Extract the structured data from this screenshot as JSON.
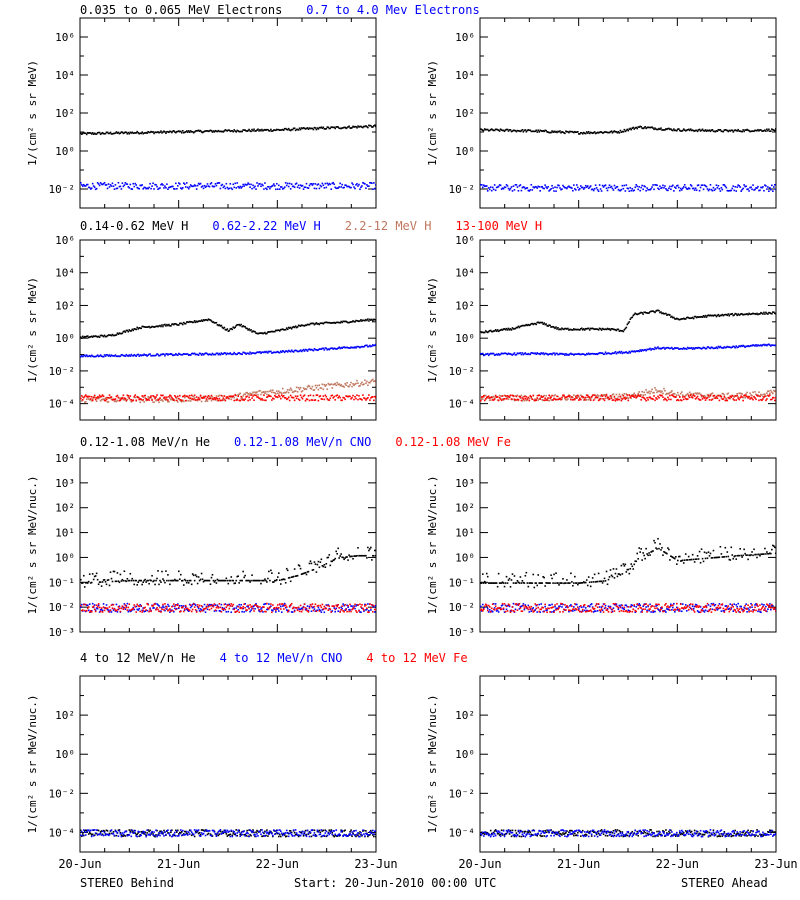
{
  "colors": {
    "black": "#000000",
    "blue": "#0000ff",
    "brown": "#c07860",
    "red": "#ff0000"
  },
  "footer": {
    "left": "STEREO Behind",
    "center": "Start: 20-Jun-2010 00:00 UTC",
    "right": "STEREO Ahead"
  },
  "chart_data": [
    {
      "type": "scatter",
      "row": 1,
      "column": "left",
      "spacecraft": "STEREO Behind",
      "ylabel": "1/(cm² s sr MeV)",
      "yscale": "log",
      "ylim_exp": [
        -3,
        7
      ],
      "y_ticks": [
        "10⁻²",
        "10⁰",
        "10²",
        "10⁴",
        "10⁶"
      ],
      "x_ticks": [
        "20-Jun",
        "21-Jun",
        "22-Jun",
        "23-Jun"
      ],
      "legend": [
        {
          "text": "0.035 to 0.065 MeV Electrons",
          "color": "#000000"
        },
        {
          "text": "0.7 to 4.0 Mev Electrons",
          "color": "#0000ff"
        }
      ],
      "series": [
        {
          "name": "0.035 to 0.065 MeV Electrons",
          "color": "#000000",
          "style": "line",
          "x": [
            0,
            0.5,
            1.0,
            1.5,
            2.0,
            2.5,
            3.0
          ],
          "log10_y": [
            0.95,
            1.0,
            1.05,
            1.1,
            1.15,
            1.25,
            1.35
          ]
        },
        {
          "name": "0.7 to 4.0 Mev Electrons",
          "color": "#0000ff",
          "style": "band",
          "x": [
            0,
            1.0,
            2.0,
            3.0
          ],
          "log10_y": [
            -1.8,
            -1.8,
            -1.8,
            -1.8
          ]
        }
      ]
    },
    {
      "type": "scatter",
      "row": 1,
      "column": "right",
      "spacecraft": "STEREO Ahead",
      "ylabel": "1/(cm² s sr MeV)",
      "yscale": "log",
      "ylim_exp": [
        -3,
        7
      ],
      "y_ticks": [
        "10⁻²",
        "10⁰",
        "10²",
        "10⁴",
        "10⁶"
      ],
      "x_ticks": [
        "20-Jun",
        "21-Jun",
        "22-Jun",
        "23-Jun"
      ],
      "legend": [],
      "series": [
        {
          "name": "0.035 to 0.065 MeV Electrons",
          "color": "#000000",
          "style": "line",
          "x": [
            0,
            0.5,
            1.0,
            1.4,
            1.6,
            2.0,
            2.5,
            3.0
          ],
          "log10_y": [
            1.15,
            1.1,
            1.0,
            1.05,
            1.3,
            1.15,
            1.1,
            1.15
          ]
        },
        {
          "name": "0.7 to 4.0 Mev Electrons",
          "color": "#0000ff",
          "style": "band",
          "x": [
            0,
            1.0,
            2.0,
            3.0
          ],
          "log10_y": [
            -1.9,
            -1.9,
            -1.9,
            -1.9
          ]
        }
      ]
    },
    {
      "type": "scatter",
      "row": 2,
      "column": "left",
      "spacecraft": "STEREO Behind",
      "ylabel": "1/(cm² s sr MeV)",
      "yscale": "log",
      "ylim_exp": [
        -5,
        6
      ],
      "y_ticks": [
        "10⁻⁴",
        "10⁻²",
        "10⁰",
        "10²",
        "10⁴",
        "10⁶"
      ],
      "x_ticks": [
        "20-Jun",
        "21-Jun",
        "22-Jun",
        "23-Jun"
      ],
      "legend": [
        {
          "text": "0.14-0.62 MeV H",
          "color": "#000000"
        },
        {
          "text": "0.62-2.22 MeV H",
          "color": "#0000ff"
        },
        {
          "text": "2.2-12 MeV H",
          "color": "#c07860"
        },
        {
          "text": "13-100 MeV H",
          "color": "#ff0000"
        }
      ],
      "series": [
        {
          "name": "0.14-0.62 MeV H",
          "color": "#000000",
          "style": "line",
          "x": [
            0,
            0.3,
            0.6,
            0.8,
            1.0,
            1.3,
            1.5,
            1.6,
            1.8,
            2.0,
            2.3,
            2.6,
            3.0
          ],
          "log10_y": [
            0.1,
            0.2,
            0.7,
            0.8,
            0.9,
            1.2,
            0.5,
            0.9,
            0.3,
            0.5,
            0.9,
            1.0,
            1.2
          ]
        },
        {
          "name": "0.62-2.22 MeV H",
          "color": "#0000ff",
          "style": "line",
          "x": [
            0,
            0.5,
            1.0,
            1.5,
            2.0,
            2.5,
            3.0
          ],
          "log10_y": [
            -1.05,
            -1.0,
            -0.95,
            -0.9,
            -0.8,
            -0.6,
            -0.4
          ]
        },
        {
          "name": "2.2-12 MeV H",
          "color": "#c07860",
          "style": "band",
          "x": [
            0,
            1.0,
            1.5,
            1.8,
            2.0,
            2.5,
            3.0
          ],
          "log10_y": [
            -3.7,
            -3.7,
            -3.6,
            -3.3,
            -3.2,
            -2.9,
            -2.6
          ]
        },
        {
          "name": "13-100 MeV H",
          "color": "#ff0000",
          "style": "band",
          "x": [
            0,
            1.0,
            2.0,
            3.0
          ],
          "log10_y": [
            -3.6,
            -3.6,
            -3.6,
            -3.6
          ]
        }
      ]
    },
    {
      "type": "scatter",
      "row": 2,
      "column": "right",
      "spacecraft": "STEREO Ahead",
      "ylabel": "1/(cm² s sr MeV)",
      "yscale": "log",
      "ylim_exp": [
        -5,
        6
      ],
      "y_ticks": [
        "10⁻⁴",
        "10⁻²",
        "10⁰",
        "10²",
        "10⁴",
        "10⁶"
      ],
      "x_ticks": [
        "20-Jun",
        "21-Jun",
        "22-Jun",
        "23-Jun"
      ],
      "legend": [],
      "series": [
        {
          "name": "0.14-0.62 MeV H",
          "color": "#000000",
          "style": "line",
          "x": [
            0,
            0.3,
            0.6,
            0.8,
            1.0,
            1.3,
            1.45,
            1.55,
            1.8,
            2.0,
            2.3,
            2.6,
            3.0
          ],
          "log10_y": [
            0.4,
            0.6,
            1.0,
            0.6,
            0.6,
            0.6,
            0.5,
            1.5,
            1.7,
            1.2,
            1.4,
            1.5,
            1.6
          ]
        },
        {
          "name": "0.62-2.22 MeV H",
          "color": "#0000ff",
          "style": "line",
          "x": [
            0,
            0.5,
            1.0,
            1.5,
            1.8,
            2.0,
            2.5,
            3.0
          ],
          "log10_y": [
            -0.95,
            -0.9,
            -0.95,
            -0.8,
            -0.55,
            -0.6,
            -0.5,
            -0.35
          ]
        },
        {
          "name": "2.2-12 MeV H",
          "color": "#c07860",
          "style": "band",
          "x": [
            0,
            1.0,
            1.5,
            1.8,
            2.0,
            2.5,
            3.0
          ],
          "log10_y": [
            -3.6,
            -3.6,
            -3.5,
            -3.1,
            -3.4,
            -3.5,
            -3.3
          ]
        },
        {
          "name": "13-100 MeV H",
          "color": "#ff0000",
          "style": "band",
          "x": [
            0,
            1.0,
            2.0,
            3.0
          ],
          "log10_y": [
            -3.6,
            -3.6,
            -3.6,
            -3.6
          ]
        }
      ]
    },
    {
      "type": "scatter",
      "row": 3,
      "column": "left",
      "spacecraft": "STEREO Behind",
      "ylabel": "1/(cm² s sr MeV/nuc.)",
      "yscale": "log",
      "ylim_exp": [
        -3,
        4
      ],
      "y_ticks": [
        "10⁻³",
        "10⁻²",
        "10⁻¹",
        "10⁰",
        "10¹",
        "10²",
        "10³",
        "10⁴"
      ],
      "x_ticks": [
        "20-Jun",
        "21-Jun",
        "22-Jun",
        "23-Jun"
      ],
      "legend": [
        {
          "text": "0.12-1.08 MeV/n He",
          "color": "#000000"
        },
        {
          "text": "0.12-1.08 MeV/n CNO",
          "color": "#0000ff"
        },
        {
          "text": "0.12-1.08 MeV Fe",
          "color": "#ff0000"
        }
      ],
      "series": [
        {
          "name": "0.12-1.08 MeV/n He",
          "color": "#000000",
          "style": "scatter",
          "x": [
            0,
            0.5,
            1.0,
            1.5,
            2.0,
            2.2,
            2.4,
            2.6,
            2.8,
            3.0
          ],
          "log10_y": [
            -1.0,
            -0.9,
            -0.9,
            -0.9,
            -0.9,
            -0.7,
            -0.4,
            0.0,
            0.1,
            0.1
          ]
        },
        {
          "name": "0.12-1.08 MeV/n CNO",
          "color": "#0000ff",
          "style": "band",
          "x": [
            0,
            1.0,
            2.0,
            3.0
          ],
          "log10_y": [
            -2.0,
            -2.0,
            -2.0,
            -2.0
          ]
        },
        {
          "name": "0.12-1.08 MeV Fe",
          "color": "#ff0000",
          "style": "band",
          "x": [
            0,
            1.0,
            2.0,
            3.0
          ],
          "log10_y": [
            -2.0,
            -2.0,
            -2.0,
            -2.0
          ]
        }
      ]
    },
    {
      "type": "scatter",
      "row": 3,
      "column": "right",
      "spacecraft": "STEREO Ahead",
      "ylabel": "1/(cm² s sr MeV/nuc.)",
      "yscale": "log",
      "ylim_exp": [
        -3,
        4
      ],
      "y_ticks": [
        "10⁻³",
        "10⁻²",
        "10⁻¹",
        "10⁰",
        "10¹",
        "10²",
        "10³",
        "10⁴"
      ],
      "x_ticks": [
        "20-Jun",
        "21-Jun",
        "22-Jun",
        "23-Jun"
      ],
      "legend": [],
      "series": [
        {
          "name": "0.12-1.08 MeV/n He",
          "color": "#000000",
          "style": "scatter",
          "x": [
            0,
            0.5,
            1.0,
            1.3,
            1.5,
            1.6,
            1.8,
            2.0,
            2.3,
            2.6,
            3.0
          ],
          "log10_y": [
            -1.0,
            -1.0,
            -1.0,
            -0.9,
            -0.5,
            0.0,
            0.4,
            -0.1,
            0.0,
            0.1,
            0.2
          ]
        },
        {
          "name": "0.12-1.08 MeV/n CNO",
          "color": "#0000ff",
          "style": "band",
          "x": [
            0,
            1.0,
            2.0,
            3.0
          ],
          "log10_y": [
            -2.0,
            -2.0,
            -2.0,
            -2.0
          ]
        },
        {
          "name": "0.12-1.08 MeV Fe",
          "color": "#ff0000",
          "style": "band",
          "x": [
            0,
            1.0,
            2.0,
            3.0
          ],
          "log10_y": [
            -2.0,
            -2.0,
            -2.0,
            -2.0
          ]
        }
      ]
    },
    {
      "type": "scatter",
      "row": 4,
      "column": "left",
      "spacecraft": "STEREO Behind",
      "ylabel": "1/(cm² s sr MeV/nuc.)",
      "yscale": "log",
      "ylim_exp": [
        -5,
        4
      ],
      "y_ticks": [
        "10⁻⁴",
        "10⁻²",
        "10⁰",
        "10²"
      ],
      "x_ticks": [
        "20-Jun",
        "21-Jun",
        "22-Jun",
        "23-Jun"
      ],
      "legend": [
        {
          "text": "4 to 12 MeV/n He",
          "color": "#000000"
        },
        {
          "text": "4 to 12 MeV/n CNO",
          "color": "#0000ff"
        },
        {
          "text": "4 to 12 MeV Fe",
          "color": "#ff0000"
        }
      ],
      "series": [
        {
          "name": "4 to 12 MeV/n He",
          "color": "#000000",
          "style": "band",
          "x": [
            0,
            1.0,
            2.0,
            3.0
          ],
          "log10_y": [
            -4.0,
            -4.0,
            -4.0,
            -4.0
          ]
        },
        {
          "name": "4 to 12 MeV/n CNO",
          "color": "#0000ff",
          "style": "band",
          "x": [
            0,
            1.0,
            2.0,
            3.0
          ],
          "log10_y": [
            -4.0,
            -4.0,
            -4.0,
            -4.0
          ]
        }
      ]
    },
    {
      "type": "scatter",
      "row": 4,
      "column": "right",
      "spacecraft": "STEREO Ahead",
      "ylabel": "1/(cm² s sr MeV/nuc.)",
      "yscale": "log",
      "ylim_exp": [
        -5,
        4
      ],
      "y_ticks": [
        "10⁻⁴",
        "10⁻²",
        "10⁰",
        "10²"
      ],
      "x_ticks": [
        "20-Jun",
        "21-Jun",
        "22-Jun",
        "23-Jun"
      ],
      "legend": [],
      "series": [
        {
          "name": "4 to 12 MeV/n He",
          "color": "#000000",
          "style": "band",
          "x": [
            0,
            1.0,
            2.0,
            3.0
          ],
          "log10_y": [
            -4.0,
            -4.0,
            -4.0,
            -4.0
          ]
        },
        {
          "name": "4 to 12 MeV/n CNO",
          "color": "#0000ff",
          "style": "band",
          "x": [
            0,
            1.0,
            2.0,
            3.0
          ],
          "log10_y": [
            -4.0,
            -4.0,
            -4.0,
            -4.0
          ]
        }
      ]
    }
  ]
}
